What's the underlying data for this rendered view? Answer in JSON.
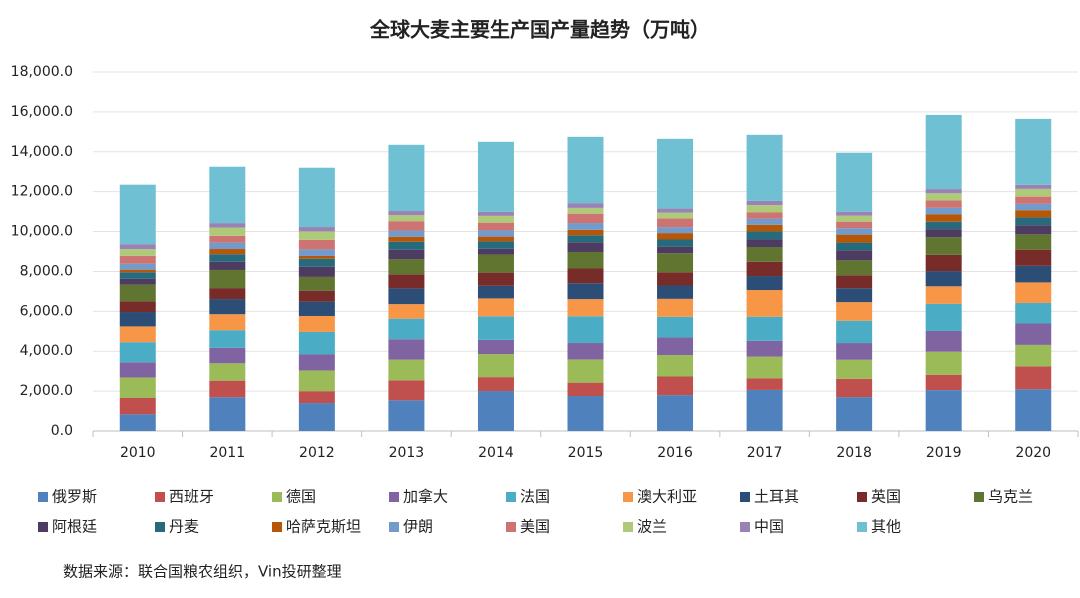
{
  "chart_data": {
    "type": "stacked_bar",
    "title": "全球大麦主要生产国产量趋势（万吨）",
    "source": "数据来源：联合国粮农组织，Vin投研整理",
    "categories": [
      "2010",
      "2011",
      "2012",
      "2013",
      "2014",
      "2015",
      "2016",
      "2017",
      "2018",
      "2019",
      "2020"
    ],
    "ylim": [
      0,
      18000
    ],
    "yticks": [
      {
        "value": 0,
        "label": "0.0"
      },
      {
        "value": 2000,
        "label": "2,000.0"
      },
      {
        "value": 4000,
        "label": "4,000.0"
      },
      {
        "value": 6000,
        "label": "6,000.0"
      },
      {
        "value": 8000,
        "label": "8,000.0"
      },
      {
        "value": 10000,
        "label": "10,000.0"
      },
      {
        "value": 12000,
        "label": "12,000.0"
      },
      {
        "value": 14000,
        "label": "14,000.0"
      },
      {
        "value": 16000,
        "label": "16,000.0"
      },
      {
        "value": 18000,
        "label": "18,000.0"
      }
    ],
    "series": [
      {
        "name": "俄罗斯",
        "color": "#4f81bd",
        "values": [
          835,
          1694,
          1400,
          1539,
          2003,
          1754,
          1799,
          2059,
          1699,
          2049,
          2094
        ]
      },
      {
        "name": "西班牙",
        "color": "#c0504d",
        "values": [
          820,
          830,
          597,
          1003,
          698,
          671,
          934,
          586,
          913,
          771,
          1146
        ]
      },
      {
        "name": "德国",
        "color": "#9bbb59",
        "values": [
          1030,
          870,
          1039,
          1035,
          1156,
          1163,
          1075,
          1085,
          960,
          1158,
          1077
        ]
      },
      {
        "name": "加拿大",
        "color": "#8064a2",
        "values": [
          760,
          781,
          801,
          1024,
          712,
          823,
          878,
          789,
          838,
          1038,
          1074
        ]
      },
      {
        "name": "法国",
        "color": "#4bacc6",
        "values": [
          1010,
          880,
          1130,
          1030,
          1180,
          1340,
          1040,
          1210,
          1120,
          1360,
          1030
        ]
      },
      {
        "name": "澳大利亚",
        "color": "#f79646",
        "values": [
          790,
          800,
          800,
          730,
          900,
          860,
          900,
          1340,
          930,
          880,
          1030
        ]
      },
      {
        "name": "土耳其",
        "color": "#2c4d75",
        "values": [
          720,
          760,
          720,
          790,
          630,
          800,
          670,
          700,
          700,
          760,
          830
        ]
      },
      {
        "name": "英国",
        "color": "#772c2a",
        "values": [
          525,
          549,
          549,
          709,
          662,
          736,
          666,
          717,
          651,
          815,
          810
        ]
      },
      {
        "name": "乌克兰",
        "color": "#5f7530",
        "values": [
          848,
          910,
          690,
          760,
          905,
          829,
          950,
          740,
          745,
          890,
          770
        ]
      },
      {
        "name": "阿根廷",
        "color": "#4d3b62",
        "values": [
          290,
          410,
          510,
          470,
          290,
          490,
          330,
          380,
          510,
          400,
          450
        ]
      },
      {
        "name": "丹麦",
        "color": "#276a7c",
        "values": [
          330,
          380,
          400,
          400,
          370,
          350,
          360,
          400,
          380,
          370,
          400
        ]
      },
      {
        "name": "哈萨克斯坦",
        "color": "#b65708",
        "values": [
          130,
          260,
          140,
          250,
          240,
          270,
          320,
          330,
          400,
          380,
          360
        ]
      },
      {
        "name": "伊朗",
        "color": "#729aca",
        "values": [
          300,
          320,
          330,
          310,
          310,
          340,
          300,
          310,
          320,
          320,
          320
        ]
      },
      {
        "name": "美国",
        "color": "#cd7371",
        "values": [
          390,
          340,
          480,
          470,
          390,
          470,
          430,
          310,
          330,
          370,
          360
        ]
      },
      {
        "name": "波兰",
        "color": "#afc97a",
        "values": [
          340,
          420,
          420,
          300,
          340,
          290,
          300,
          370,
          300,
          360,
          390
        ]
      },
      {
        "name": "中国",
        "color": "#9983b5",
        "values": [
          250,
          220,
          220,
          210,
          200,
          240,
          200,
          210,
          200,
          210,
          200
        ]
      },
      {
        "name": "其他",
        "color": "#6fc0d3",
        "values": [
          2982,
          2826,
          2974,
          3320,
          3514,
          3324,
          3498,
          3314,
          2954,
          3719,
          3309
        ]
      }
    ]
  }
}
